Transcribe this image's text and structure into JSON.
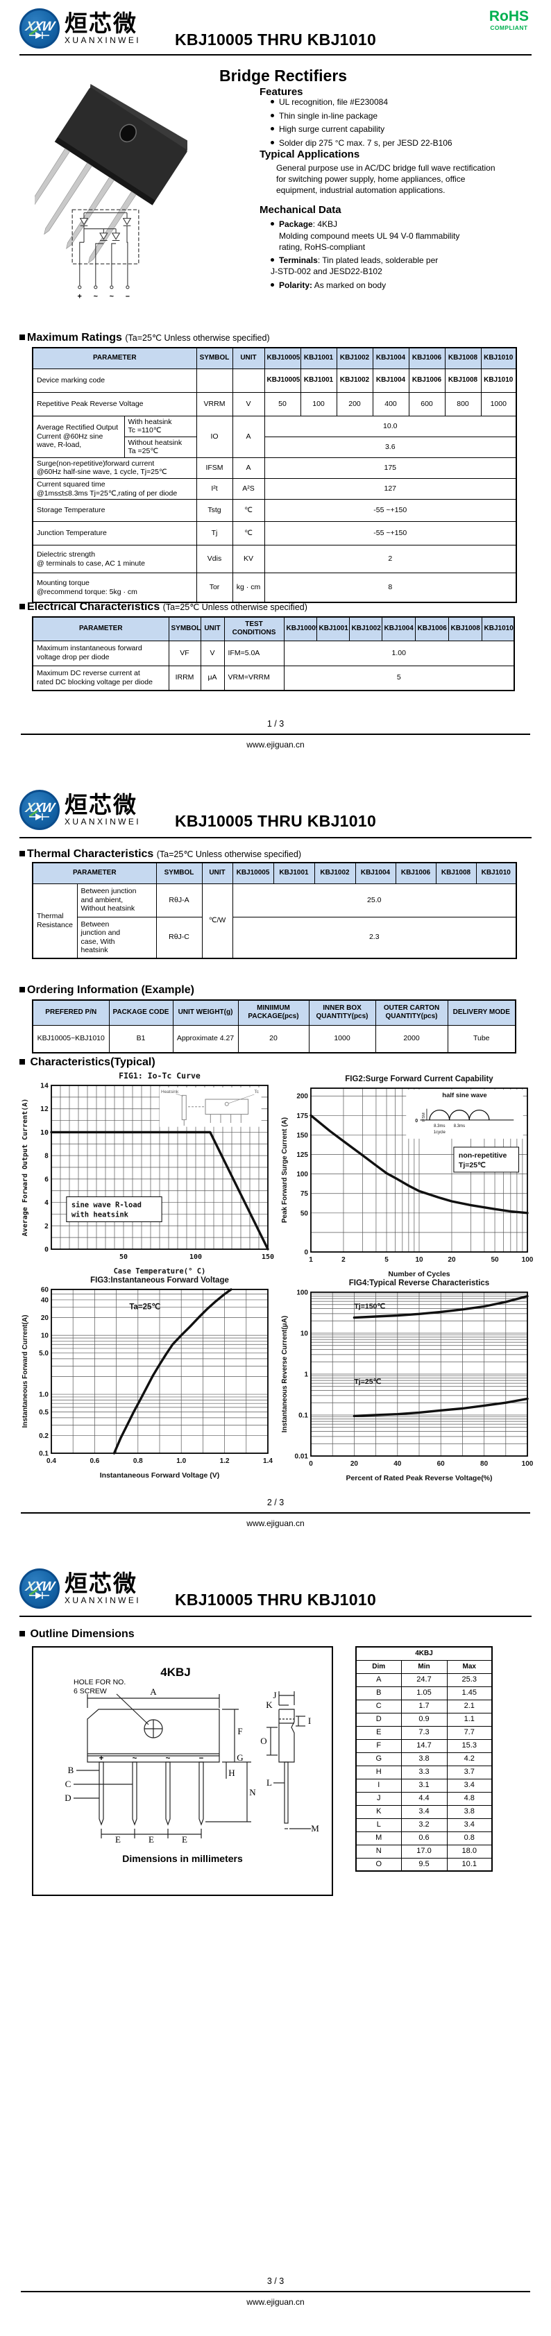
{
  "colors": {
    "accent_green": "#00b050",
    "table_header_bg": "#c6d9f0",
    "logo_blue": "#1565a8",
    "logo_blue_dark": "#0b4d8c",
    "logo_green": "#4caf50"
  },
  "brand": {
    "logo_cn": "烜芯微",
    "logo_en": "XUANXINWEI",
    "logo_abbr": "XXW",
    "doc_title": "KBJ10005 THRU KBJ1010",
    "rohs_line1": "RoHS",
    "rohs_line2": "COMPLIANT"
  },
  "models": [
    "KBJ10005",
    "KBJ1001",
    "KBJ1002",
    "KBJ1004",
    "KBJ1006",
    "KBJ1008",
    "KBJ1010"
  ],
  "terminals": [
    "+",
    "~",
    "~",
    "−"
  ],
  "footer": {
    "p1": "1 / 3",
    "p2": "2 / 3",
    "p3": "3 / 3",
    "url": "www.ejiguan.cn"
  },
  "page1": {
    "product_title": "Bridge Rectifiers",
    "features_title": "Features",
    "features": [
      "UL recognition, file #E230084",
      "Thin single in-line package",
      "High surge current capability",
      "Solder dip 275 °C max. 7 s, per JESD 22-B106"
    ],
    "apps_title": "Typical Applications",
    "apps_text": "General purpose use in AC/DC bridge full wave rectification\nfor switching power supply, home appliances, office\nequipment, industrial automation applications.",
    "mech_title": "Mechanical Data",
    "mech": [
      {
        "lead": "Package",
        "rest": ": 4KBJ",
        "cont": "Molding compound meets UL 94 V-0 flammability\nrating, RoHS-compliant"
      },
      {
        "lead": "Terminals",
        "rest": ": Tin plated leads, solderable per\nJ-STD-002 and JESD22-B102",
        "cont": ""
      },
      {
        "lead": "Polarity:",
        "rest": " As marked on body",
        "cont": ""
      }
    ]
  },
  "sections": {
    "max": {
      "title": "Maximum Ratings",
      "cond": "(Ta=25℃ Unless otherwise specified)"
    },
    "elec": {
      "title": "Electrical Characteristics",
      "cond": "(Ta=25℃ Unless otherwise specified)"
    },
    "thermal": {
      "title": "Thermal Characteristics",
      "cond": "(Ta=25℃ Unless otherwise specified)"
    },
    "ordering": {
      "title": "Ordering Information (Example)"
    },
    "chars": {
      "title": "Characteristics(Typical)"
    },
    "outline": {
      "title": "Outline Dimensions"
    }
  },
  "max_table": {
    "h": {
      "param": "PARAMETER",
      "symbol": "SYMBOL",
      "unit": "UNIT"
    },
    "marking": {
      "param": "Device marking code",
      "values": [
        "KBJ10005",
        "KBJ1001",
        "KBJ1002",
        "KBJ1004",
        "KBJ1006",
        "KBJ1008",
        "KBJ1010"
      ]
    },
    "vrrm": {
      "param": "Repetitive Peak Reverse Voltage",
      "symbol": "VRRM",
      "unit": "V",
      "values": [
        "50",
        "100",
        "200",
        "400",
        "600",
        "800",
        "1000"
      ]
    },
    "io": {
      "param": "Average Rectified Output Current @60Hz sine wave, R-load,",
      "sub1": "With heatsink\nTc =110℃",
      "sub2": "Without heatsink\nTa =25℃",
      "symbol": "IO",
      "unit": "A",
      "v1": "10.0",
      "v2": "3.6"
    },
    "ifsm": {
      "param": "Surge(non-repetitive)forward current\n@60Hz half-sine wave, 1 cycle,  Tj=25℃",
      "symbol": "IFSM",
      "unit": "A",
      "value": "175"
    },
    "i2t": {
      "param": "Current squared time\n@1ms≤t≤8.3ms Tj=25℃,rating of per diode",
      "symbol": "I²t",
      "unit": "A²S",
      "value": "127"
    },
    "tstg": {
      "param": "Storage Temperature",
      "symbol": "Tstg",
      "unit": "℃",
      "value": "-55 ~+150"
    },
    "tj": {
      "param": "Junction Temperature",
      "symbol": "Tj",
      "unit": "℃",
      "value": "-55 ~+150"
    },
    "vdis": {
      "param": "Dielectric strength\n@ terminals to case, AC 1 minute",
      "symbol": "Vdis",
      "unit": "KV",
      "value": "2"
    },
    "tor": {
      "param": "Mounting torque\n@recommend torque: 5kg · cm",
      "symbol": "Tor",
      "unit": "kg · cm",
      "value": "8"
    }
  },
  "elec_table": {
    "h": {
      "param": "PARAMETER",
      "symbol": "SYMBOL",
      "unit": "UNIT",
      "test": "TEST\nCONDITIONS"
    },
    "vf": {
      "param": "Maximum instantaneous forward\nvoltage drop per diode",
      "symbol": "VF",
      "unit": "V",
      "test": "IFM=5.0A",
      "value": "1.00"
    },
    "irrm": {
      "param": "Maximum DC reverse current at\nrated DC blocking voltage per diode",
      "symbol": "IRRM",
      "unit": "μA",
      "test": "VRM=VRRM",
      "value": "5"
    }
  },
  "thermal_table": {
    "h": {
      "param": "PARAMETER",
      "symbol": "SYMBOL",
      "unit": "UNIT"
    },
    "group": "Thermal\nResistance",
    "r1": {
      "desc": "Between junction\nand ambient,\nWithout heatsink",
      "symbol": "RθJ-A",
      "value": "25.0"
    },
    "r2": {
      "desc": "Between\njunction and\ncase, With\nheatsink",
      "symbol": "RθJ-C",
      "value": "2.3"
    },
    "unit": "℃/W"
  },
  "ordering_table": {
    "headers": [
      "PREFERED P/N",
      "PACKAGE CODE",
      "UNIT WEIGHT(g)",
      "MINIIMUM\nPACKAGE(pcs)",
      "INNER BOX\nQUANTITY(pcs)",
      "OUTER CARTON\nQUANTITY(pcs)",
      "DELIVERY MODE"
    ],
    "row": [
      "KBJ10005~KBJ1010",
      "B1",
      "Approximate 4.27",
      "20",
      "1000",
      "2000",
      "Tube"
    ]
  },
  "chart_data": [
    {
      "id": "fig1",
      "type": "line",
      "font": "mono",
      "title": "FIG1: Io-Tc Curve",
      "xlabel": "Case Temperature(° C)",
      "ylabel": "Average Forward Output Current(A)",
      "x": {
        "scale": "linear",
        "min": 0,
        "max": 150,
        "grid_step": 6.25,
        "ticks": [
          [
            50,
            "50"
          ],
          [
            100,
            "100"
          ],
          [
            150,
            "150"
          ]
        ]
      },
      "y": {
        "scale": "linear",
        "min": 0,
        "max": 14,
        "grid_step": 1,
        "ticks": [
          [
            0,
            "0"
          ],
          [
            2,
            "2"
          ],
          [
            4,
            "4"
          ],
          [
            6,
            "6"
          ],
          [
            8,
            "8"
          ],
          [
            10,
            "10"
          ],
          [
            12,
            "12"
          ],
          [
            14,
            "14"
          ]
        ]
      },
      "series": [
        {
          "name": "Io",
          "points": [
            [
              0,
              10
            ],
            [
              110,
              10
            ],
            [
              150,
              0
            ]
          ]
        }
      ],
      "annotations": [
        {
          "fx": 0.07,
          "fy": 0.68,
          "w": 0.44,
          "lines": [
            "sine wave R-load",
            "with heatsink"
          ],
          "box": true
        }
      ],
      "inset": "heatsink",
      "inset_labels": [
        "Heatsink",
        "Tc"
      ]
    },
    {
      "id": "fig2",
      "type": "line",
      "title": "FIG2:Surge Forward Current Capability",
      "xlabel": "Number of Cycles",
      "ylabel": "Peak Forward Surge Current (A)",
      "x": {
        "scale": "log",
        "min": 1,
        "max": 100,
        "ticks": [
          [
            1,
            "1"
          ],
          [
            2,
            "2"
          ],
          [
            5,
            "5"
          ],
          [
            10,
            "10"
          ],
          [
            20,
            "20"
          ],
          [
            50,
            "50"
          ],
          [
            100,
            "100"
          ]
        ]
      },
      "y": {
        "scale": "linear",
        "min": 0,
        "max": 210,
        "grid_step": 25,
        "ticks": [
          [
            0,
            "0"
          ],
          [
            50,
            "50"
          ],
          [
            75,
            "75"
          ],
          [
            100,
            "100"
          ],
          [
            125,
            "125"
          ],
          [
            150,
            "150"
          ],
          [
            175,
            "175"
          ],
          [
            200,
            "200"
          ]
        ]
      },
      "series": [
        {
          "name": "IFSM",
          "points": [
            [
              1,
              175
            ],
            [
              1.5,
              155
            ],
            [
              2,
              142
            ],
            [
              3,
              124
            ],
            [
              4,
              111
            ],
            [
              5,
              101
            ],
            [
              6,
              95
            ],
            [
              8,
              85
            ],
            [
              10,
              78
            ],
            [
              15,
              70
            ],
            [
              20,
              65
            ],
            [
              30,
              60
            ],
            [
              50,
              55
            ],
            [
              70,
              52
            ],
            [
              100,
              50
            ]
          ]
        }
      ],
      "annotations": [
        {
          "fx": 0.66,
          "fy": 0.36,
          "w": 0.3,
          "lines": [
            "non-repetitive",
            "Tj=25℃"
          ],
          "box": true
        }
      ],
      "inset": "halfsine",
      "inset_labels": [
        "half sine wave",
        "IFSM",
        "8.3ms",
        "8.3ms",
        "1cycle",
        "0"
      ]
    },
    {
      "id": "fig3",
      "type": "line",
      "title": "FIG3:Instantaneous Forward Voltage",
      "xlabel": "Instantaneous Forward Voltage (V)",
      "ylabel": "Instantaneous Forward Current(A)",
      "x": {
        "scale": "linear",
        "min": 0.4,
        "max": 1.4,
        "grid_step": 0.1,
        "ticks": [
          [
            0.4,
            "0.4"
          ],
          [
            0.6,
            "0.6"
          ],
          [
            0.8,
            "0.8"
          ],
          [
            1.0,
            "1.0"
          ],
          [
            1.2,
            "1.2"
          ],
          [
            1.4,
            "1.4"
          ]
        ]
      },
      "y": {
        "scale": "log",
        "min": 0.1,
        "max": 60,
        "ticks": [
          [
            0.1,
            "0.1"
          ],
          [
            0.2,
            "0.2"
          ],
          [
            0.5,
            "0.5"
          ],
          [
            1,
            "1.0"
          ],
          [
            5,
            "5.0"
          ],
          [
            10,
            "10"
          ],
          [
            20,
            "20"
          ],
          [
            40,
            "40"
          ],
          [
            60,
            "60"
          ]
        ]
      },
      "series": [
        {
          "name": "VF",
          "points": [
            [
              0.69,
              0.1
            ],
            [
              0.72,
              0.18
            ],
            [
              0.75,
              0.3
            ],
            [
              0.78,
              0.5
            ],
            [
              0.81,
              0.8
            ],
            [
              0.84,
              1.3
            ],
            [
              0.87,
              2.1
            ],
            [
              0.9,
              3.2
            ],
            [
              0.93,
              4.8
            ],
            [
              0.96,
              7
            ],
            [
              1.0,
              10
            ],
            [
              1.04,
              14
            ],
            [
              1.08,
              20
            ],
            [
              1.12,
              28
            ],
            [
              1.16,
              38
            ],
            [
              1.2,
              50
            ],
            [
              1.23,
              60
            ]
          ]
        }
      ],
      "annotations": [
        {
          "fx": 0.36,
          "fy": 0.12,
          "lines": [
            "Ta=25℃"
          ],
          "box": false
        }
      ]
    },
    {
      "id": "fig4",
      "type": "line",
      "title": "FIG4:Typical Reverse Characteristics",
      "xlabel": "Percent of Rated Peak Reverse Voltage(%)",
      "ylabel": "Instantaneous Reverse Current(μA)",
      "x": {
        "scale": "linear",
        "min": 0,
        "max": 100,
        "grid_step": 10,
        "ticks": [
          [
            0,
            "0"
          ],
          [
            20,
            "20"
          ],
          [
            40,
            "40"
          ],
          [
            60,
            "60"
          ],
          [
            80,
            "80"
          ],
          [
            100,
            "100"
          ]
        ]
      },
      "y": {
        "scale": "log",
        "min": 0.01,
        "max": 100,
        "ticks": [
          [
            0.01,
            "0.01"
          ],
          [
            0.1,
            "0.1"
          ],
          [
            1,
            "1"
          ],
          [
            10,
            "10"
          ],
          [
            100,
            "100"
          ]
        ]
      },
      "series": [
        {
          "name": "Tj=150C",
          "points": [
            [
              20,
              24
            ],
            [
              30,
              25.5
            ],
            [
              40,
              27
            ],
            [
              50,
              29.5
            ],
            [
              60,
              33
            ],
            [
              70,
              38
            ],
            [
              80,
              45
            ],
            [
              90,
              58
            ],
            [
              100,
              80
            ]
          ],
          "label": {
            "fx": 0.2,
            "fy": 0.1,
            "text": "Tj=150℃"
          }
        },
        {
          "name": "Tj=25C",
          "points": [
            [
              20,
              0.095
            ],
            [
              30,
              0.1
            ],
            [
              40,
              0.105
            ],
            [
              50,
              0.115
            ],
            [
              60,
              0.13
            ],
            [
              70,
              0.145
            ],
            [
              80,
              0.17
            ],
            [
              90,
              0.2
            ],
            [
              100,
              0.25
            ]
          ],
          "label": {
            "fx": 0.2,
            "fy": 0.56,
            "text": "Tj=25℃"
          }
        }
      ]
    }
  ],
  "page3": {
    "package_name": "4KBJ",
    "hole_label1": "HOLE FOR NO.",
    "hole_label2": "6 SCREW",
    "dims_note": "Dimensions in millimeters",
    "front_labels": [
      "A",
      "B",
      "C",
      "D",
      "E",
      "F",
      "G",
      "H",
      "N"
    ],
    "side_labels": [
      "J",
      "K",
      "I",
      "O",
      "L",
      "M"
    ],
    "dim_table": {
      "title": "4KBJ",
      "headers": [
        "Dim",
        "Min",
        "Max"
      ],
      "rows": [
        [
          "A",
          "24.7",
          "25.3"
        ],
        [
          "B",
          "1.05",
          "1.45"
        ],
        [
          "C",
          "1.7",
          "2.1"
        ],
        [
          "D",
          "0.9",
          "1.1"
        ],
        [
          "E",
          "7.3",
          "7.7"
        ],
        [
          "F",
          "14.7",
          "15.3"
        ],
        [
          "G",
          "3.8",
          "4.2"
        ],
        [
          "H",
          "3.3",
          "3.7"
        ],
        [
          "I",
          "3.1",
          "3.4"
        ],
        [
          "J",
          "4.4",
          "4.8"
        ],
        [
          "K",
          "3.4",
          "3.8"
        ],
        [
          "L",
          "3.2",
          "3.4"
        ],
        [
          "M",
          "0.6",
          "0.8"
        ],
        [
          "N",
          "17.0",
          "18.0"
        ],
        [
          "O",
          "9.5",
          "10.1"
        ]
      ]
    }
  }
}
